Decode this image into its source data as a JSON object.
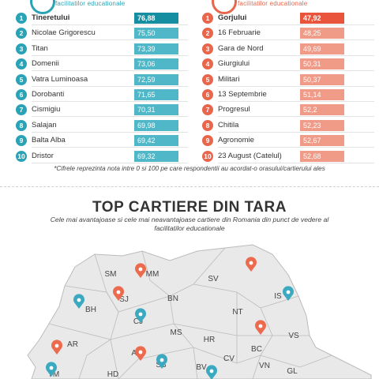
{
  "left_panel": {
    "badge": "",
    "subtitle": "facilitatilor educationale",
    "color": "#2aa3b6",
    "rows": [
      {
        "rank": "1",
        "name": "Tineretului",
        "value": "76,88"
      },
      {
        "rank": "2",
        "name": "Nicolae Grigorescu",
        "value": "75,50"
      },
      {
        "rank": "3",
        "name": "Titan",
        "value": "73,39"
      },
      {
        "rank": "4",
        "name": "Domenii",
        "value": "73,06"
      },
      {
        "rank": "5",
        "name": "Vatra Luminoasa",
        "value": "72,59"
      },
      {
        "rank": "6",
        "name": "Dorobanti",
        "value": "71,65"
      },
      {
        "rank": "7",
        "name": "Cismigiu",
        "value": "70,31"
      },
      {
        "rank": "8",
        "name": "Salajan",
        "value": "69,98"
      },
      {
        "rank": "9",
        "name": "Balta Alba",
        "value": "69,42"
      },
      {
        "rank": "10",
        "name": "Dristor",
        "value": "69,32"
      }
    ]
  },
  "right_panel": {
    "badge": "",
    "subtitle": "facilitatilor educationale",
    "color": "#e8664c",
    "rows": [
      {
        "rank": "1",
        "name": "Gorjului",
        "value": "47,92"
      },
      {
        "rank": "2",
        "name": "16 Februarie",
        "value": "48,25"
      },
      {
        "rank": "3",
        "name": "Gara de Nord",
        "value": "49,69"
      },
      {
        "rank": "4",
        "name": "Giurgiului",
        "value": "50,31"
      },
      {
        "rank": "5",
        "name": "Militari",
        "value": "50,37"
      },
      {
        "rank": "6",
        "name": "13 Septembrie",
        "value": "51,14"
      },
      {
        "rank": "7",
        "name": "Progresul",
        "value": "52,2"
      },
      {
        "rank": "8",
        "name": "Chitila",
        "value": "52,23"
      },
      {
        "rank": "9",
        "name": "Agronomie",
        "value": "52,67"
      },
      {
        "rank": "10",
        "name": "23 August (Catelul)",
        "value": "52,68"
      }
    ]
  },
  "note": "*Cifrele reprezinta nota intre 0 si 100 pe care respondentii au acordat-o orasului/cartierului ales",
  "map_section": {
    "title": "TOP CARTIERE DIN TARA",
    "subtitle": "Cele mai avantajoase si cele mai neavantajoase cartiere din Romania din punct de vedere al facilitatilor educationale",
    "map_fill": "#e9e9e9",
    "border_color": "#bbbbbb",
    "pin_blue": "#3ba9bf",
    "pin_orange": "#ec6a4e",
    "counties": [
      "SM",
      "MM",
      "SV",
      "BH",
      "SJ",
      "BN",
      "IS",
      "CJ",
      "NT",
      "MS",
      "AR",
      "HR",
      "BC",
      "VS",
      "AB",
      "TM",
      "HD",
      "SB",
      "BV",
      "CV",
      "VN",
      "GL"
    ]
  },
  "chart_data": [
    {
      "type": "bar",
      "categories": [
        "Tineretului",
        "Nicolae Grigorescu",
        "Titan",
        "Domenii",
        "Vatra Luminoasa",
        "Dorobanti",
        "Cismigiu",
        "Salajan",
        "Balta Alba",
        "Dristor"
      ],
      "values": [
        76.88,
        75.5,
        73.39,
        73.06,
        72.59,
        71.65,
        70.31,
        69.98,
        69.42,
        69.32
      ],
      "ylim": [
        0,
        100
      ]
    },
    {
      "type": "bar",
      "categories": [
        "Gorjului",
        "16 Februarie",
        "Gara de Nord",
        "Giurgiului",
        "Militari",
        "13 Septembrie",
        "Progresul",
        "Chitila",
        "Agronomie",
        "23 August (Catelul)"
      ],
      "values": [
        47.92,
        48.25,
        49.69,
        50.31,
        50.37,
        51.14,
        52.2,
        52.23,
        52.67,
        52.68
      ],
      "ylim": [
        0,
        100
      ]
    }
  ]
}
